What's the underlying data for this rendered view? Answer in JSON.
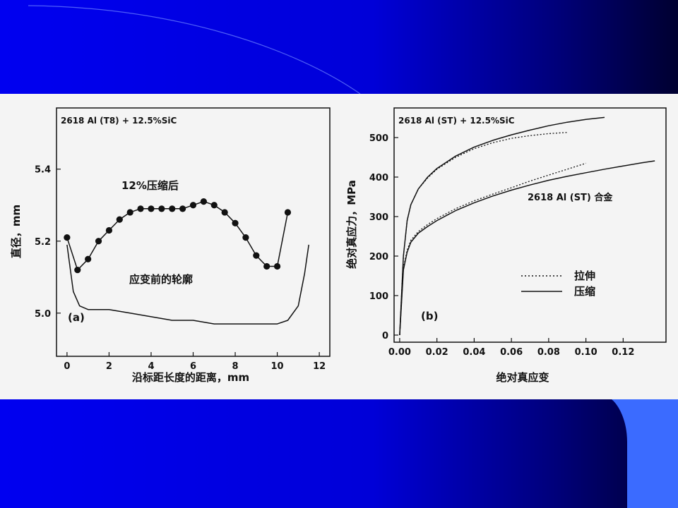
{
  "colors": {
    "band": "#0000e8",
    "band_dark": "#000030",
    "corner_tab": "#3b6bff",
    "figure_background": "#f4f4f4",
    "ink": "#111111"
  },
  "chart_data": [
    {
      "type": "line",
      "panel_label": "(a)",
      "header": "2618 Al (T8) + 12.5%SiC",
      "xlabel": "沿标距长度的距离，mm",
      "ylabel": "直径，mm",
      "x_ticks": [
        "0",
        "2",
        "4",
        "6",
        "8",
        "10",
        "12"
      ],
      "y_ticks": [
        "5.0",
        "5.2",
        "5.4"
      ],
      "xlim": [
        -0.5,
        12.5
      ],
      "ylim": [
        4.88,
        5.57
      ],
      "grid": false,
      "series": [
        {
          "name": "12%压缩后",
          "markers": true,
          "x": [
            0,
            0.5,
            1,
            1.5,
            2,
            2.5,
            3,
            3.5,
            4,
            4.5,
            5,
            5.5,
            6,
            6.5,
            7,
            7.5,
            8,
            8.5,
            9,
            9.5,
            10,
            10.5
          ],
          "y": [
            5.21,
            5.12,
            5.15,
            5.2,
            5.23,
            5.26,
            5.28,
            5.29,
            5.29,
            5.29,
            5.29,
            5.29,
            5.3,
            5.31,
            5.3,
            5.28,
            5.25,
            5.21,
            5.16,
            5.13,
            5.13,
            5.28
          ]
        },
        {
          "name": "应变前的轮廓",
          "markers": false,
          "x": [
            0,
            0.3,
            0.6,
            1,
            2,
            3,
            4,
            5,
            6,
            7,
            8,
            9,
            10,
            10.5,
            11,
            11.3,
            11.5
          ],
          "y": [
            5.19,
            5.06,
            5.02,
            5.01,
            5.01,
            5.0,
            4.99,
            4.98,
            4.98,
            4.97,
            4.97,
            4.97,
            4.97,
            4.98,
            5.02,
            5.11,
            5.19
          ]
        }
      ]
    },
    {
      "type": "line",
      "panel_label": "(b)",
      "header": "2618 Al (ST) + 12.5%SiC",
      "xlabel": "绝对真应变",
      "ylabel": "绝对真应力，MPa",
      "x_ticks": [
        "0.00",
        "0.02",
        "0.04",
        "0.06",
        "0.08",
        "0.10",
        "0.12"
      ],
      "y_ticks": [
        "0",
        "100",
        "200",
        "300",
        "400",
        "500"
      ],
      "xlim": [
        -0.003,
        0.143
      ],
      "ylim": [
        -18,
        575
      ],
      "grid": false,
      "curve_label": "2618 Al (ST)  合金",
      "legend": {
        "position": "lower-right",
        "entries": [
          "拉伸",
          "压缩"
        ]
      },
      "series": [
        {
          "name": "拉伸",
          "material": "2618 Al (ST) + 12.5%SiC",
          "style": "dotted",
          "x": [
            0,
            0.002,
            0.004,
            0.006,
            0.01,
            0.015,
            0.02,
            0.03,
            0.04,
            0.05,
            0.06,
            0.07,
            0.08,
            0.09
          ],
          "y": [
            0,
            200,
            290,
            330,
            370,
            398,
            420,
            450,
            472,
            487,
            498,
            505,
            510,
            513
          ]
        },
        {
          "name": "压缩",
          "material": "2618 Al (ST) + 12.5%SiC",
          "style": "solid",
          "x": [
            0,
            0.002,
            0.004,
            0.006,
            0.01,
            0.015,
            0.02,
            0.03,
            0.04,
            0.05,
            0.06,
            0.07,
            0.08,
            0.09,
            0.1,
            0.11
          ],
          "y": [
            0,
            200,
            290,
            330,
            370,
            400,
            422,
            453,
            476,
            493,
            507,
            519,
            530,
            539,
            546,
            551
          ]
        },
        {
          "name": "拉伸",
          "material": "2618 Al (ST)",
          "style": "dotted",
          "x": [
            0,
            0.002,
            0.004,
            0.006,
            0.01,
            0.015,
            0.02,
            0.03,
            0.04,
            0.05,
            0.06,
            0.07,
            0.08,
            0.09,
            0.1
          ],
          "y": [
            0,
            170,
            215,
            240,
            262,
            280,
            295,
            320,
            340,
            357,
            373,
            390,
            405,
            420,
            435
          ]
        },
        {
          "name": "压缩",
          "material": "2618 Al (ST)",
          "style": "solid",
          "x": [
            0,
            0.002,
            0.004,
            0.006,
            0.01,
            0.015,
            0.02,
            0.03,
            0.04,
            0.05,
            0.06,
            0.07,
            0.08,
            0.09,
            0.1,
            0.11,
            0.12,
            0.13,
            0.137
          ],
          "y": [
            0,
            165,
            210,
            235,
            258,
            275,
            290,
            315,
            335,
            352,
            367,
            380,
            392,
            402,
            411,
            420,
            428,
            436,
            441
          ]
        }
      ]
    }
  ]
}
